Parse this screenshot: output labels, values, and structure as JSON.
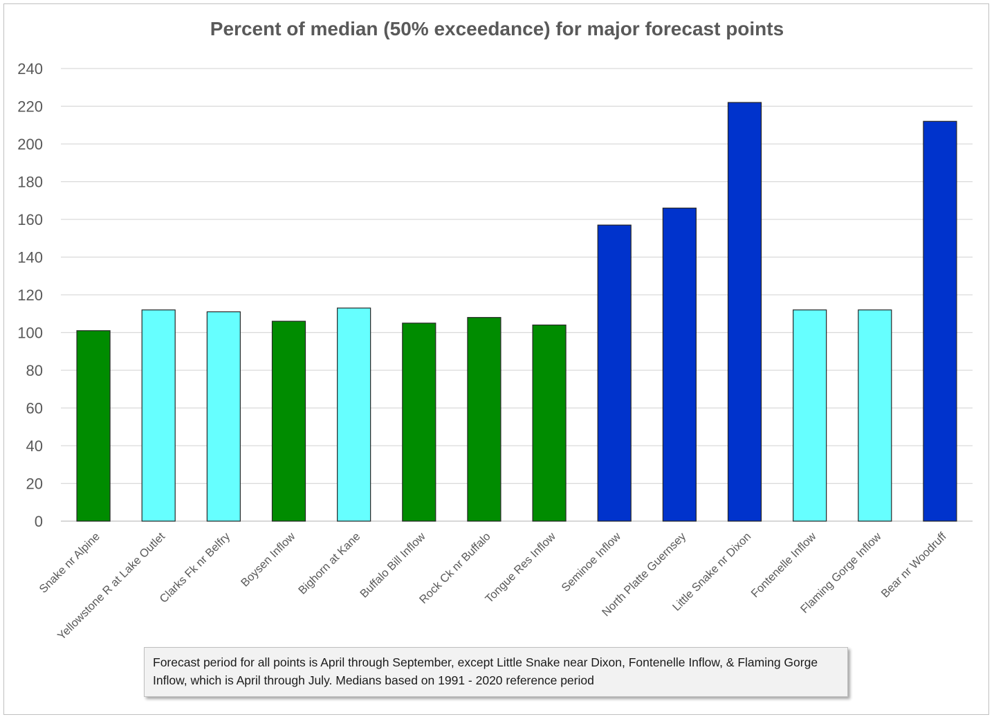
{
  "chart_data": {
    "type": "bar",
    "title": "Percent of median (50% exceedance) for major forecast points",
    "xlabel": "",
    "ylabel": "",
    "ylim": [
      0,
      240
    ],
    "yticks": [
      0,
      20,
      40,
      60,
      80,
      100,
      120,
      140,
      160,
      180,
      200,
      220,
      240
    ],
    "grid": true,
    "legend": "none",
    "categories": [
      "Snake nr Alpine",
      "Yellowstone R at Lake Outlet",
      "Clarks Fk nr Belfry",
      "Boysen Inflow",
      "Bighorn at Kane",
      "Buffalo Bill Inflow",
      "Rock Ck nr Buffalo",
      "Tongue Res Inflow",
      "Seminoe Inflow",
      "North Platte Guernsey",
      "Little Snake nr Dixon",
      "Fontenelle Inflow",
      "Flaming Gorge Inflow",
      "Bear nr Woodruff"
    ],
    "values": [
      101,
      112,
      111,
      106,
      113,
      105,
      108,
      104,
      157,
      166,
      222,
      112,
      112,
      212
    ],
    "bar_colors": [
      "#008c00",
      "#66ffff",
      "#66ffff",
      "#008c00",
      "#66ffff",
      "#008c00",
      "#008c00",
      "#008c00",
      "#0033cc",
      "#0033cc",
      "#0033cc",
      "#66ffff",
      "#66ffff",
      "#0033cc"
    ],
    "note": "Forecast period for all points is April through September, except Little Snake near Dixon, Fontenelle Inflow, & Flaming Gorge Inflow, which is April through July. Medians based on 1991 - 2020 reference period"
  },
  "colors": {
    "dark_green": "#008c00",
    "light_cyan": "#66ffff",
    "royal_blue": "#0033cc",
    "gridline": "#d9d9d9",
    "axis_text": "#595959"
  }
}
